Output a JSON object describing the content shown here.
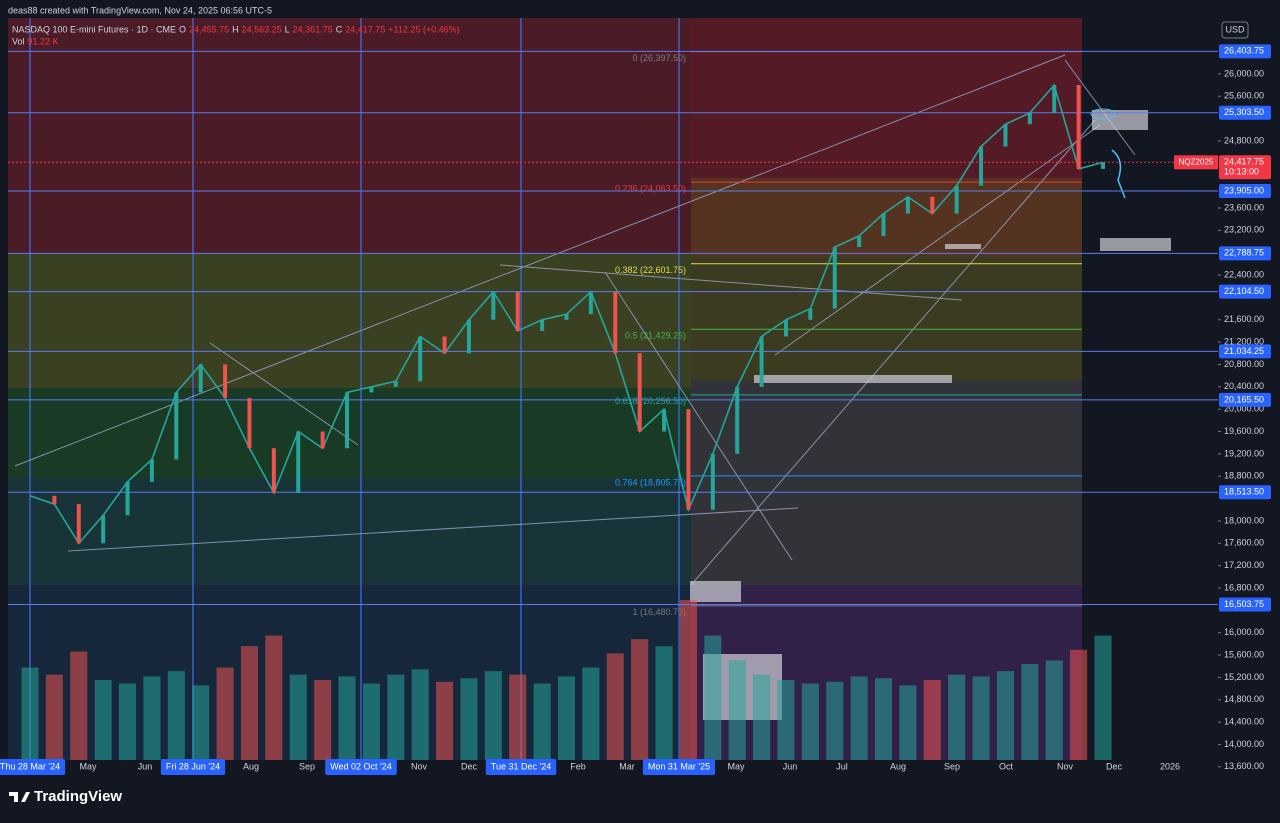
{
  "header": {
    "credit": "deas88 created with TradingView.com, Nov 24, 2025 06:56 UTC-5",
    "symbol": "NASDAQ 100 E-mini Futures · 1D · CME",
    "ohlc": [
      {
        "key": "O",
        "value": "24,455.75"
      },
      {
        "key": "H",
        "value": "24,563.25"
      },
      {
        "key": "L",
        "value": "24,361.75"
      },
      {
        "key": "C",
        "value": "24,417.75"
      }
    ],
    "change": "+112.25 (+0.46%)",
    "vol_label": "Vol",
    "vol_value": "91.22 K"
  },
  "currency": "USD",
  "price_axis": {
    "ylim": [
      13400,
      27000
    ],
    "ticks": [
      {
        "value": 26000,
        "label": "26,000.00"
      },
      {
        "value": 25600,
        "label": "25,600.00"
      },
      {
        "value": 24800,
        "label": "24,800.00"
      },
      {
        "value": 23600,
        "label": "23,600.00"
      },
      {
        "value": 23200,
        "label": "23,200.00"
      },
      {
        "value": 22400,
        "label": "22,400.00"
      },
      {
        "value": 21600,
        "label": "21,600.00"
      },
      {
        "value": 21200,
        "label": "21,200.00"
      },
      {
        "value": 20800,
        "label": "20,800.00"
      },
      {
        "value": 20400,
        "label": "20,400.00"
      },
      {
        "value": 20000,
        "label": "20,000.00"
      },
      {
        "value": 19600,
        "label": "19,600.00"
      },
      {
        "value": 19200,
        "label": "19,200.00"
      },
      {
        "value": 18800,
        "label": "18,800.00"
      },
      {
        "value": 18000,
        "label": "18,000.00"
      },
      {
        "value": 17600,
        "label": "17,600.00"
      },
      {
        "value": 17200,
        "label": "17,200.00"
      },
      {
        "value": 16800,
        "label": "16,800.00"
      },
      {
        "value": 16000,
        "label": "16,000.00"
      },
      {
        "value": 15600,
        "label": "15,600.00"
      },
      {
        "value": 15200,
        "label": "15,200.00"
      },
      {
        "value": 14800,
        "label": "14,800.00"
      },
      {
        "value": 14400,
        "label": "14,400.00"
      },
      {
        "value": 14000,
        "label": "14,000.00"
      },
      {
        "value": 13600,
        "label": "13,600.00"
      }
    ],
    "level_tags": [
      {
        "value": 26403.75,
        "label": "26,403.75"
      },
      {
        "value": 25303.5,
        "label": "25,303.50"
      },
      {
        "value": 23905,
        "label": "23,905.00"
      },
      {
        "value": 22788.75,
        "label": "22,788.75"
      },
      {
        "value": 22104.5,
        "label": "22,104.50"
      },
      {
        "value": 21034.25,
        "label": "21,034.25"
      },
      {
        "value": 20165.5,
        "label": "20,165.50"
      },
      {
        "value": 18513.5,
        "label": "18,513.50"
      },
      {
        "value": 16503.75,
        "label": "16,503.75"
      }
    ],
    "last_price": {
      "value": 24417.75,
      "symbol": "NQZ2025",
      "label": "24,417.75",
      "countdown": "10:13:00"
    }
  },
  "fib_levels": [
    {
      "value": 26397.5,
      "label": "0 (26,397.50)",
      "color": "#787b86"
    },
    {
      "value": 24063.5,
      "label": "0.236 (24,063.50)",
      "color": "#f23645"
    },
    {
      "value": 22601.75,
      "label": "0.382 (22,601.75)",
      "color": "#e8d94a"
    },
    {
      "value": 21429.25,
      "label": "0.5 (21,429.25)",
      "color": "#4caf50"
    },
    {
      "value": 20256.5,
      "label": "0.618 (20,256.50)",
      "color": "#26a69a"
    },
    {
      "value": 18805.75,
      "label": "0.764 (18,805.75)",
      "color": "#2196f3"
    },
    {
      "value": 16480.75,
      "label": "1 (16,480.75)",
      "color": "#787b86"
    }
  ],
  "time_axis": {
    "labels": [
      "Thu 28 Mar '24",
      "May",
      "Jun",
      "Fri 28 Jun '24",
      "Aug",
      "Sep",
      "Wed 02 Oct '24",
      "Nov",
      "Dec",
      "Tue 31 Dec '24",
      "Feb",
      "Mar",
      "Mon 31 Mar '25",
      "May",
      "Jun",
      "Jul",
      "Aug",
      "Sep",
      "Oct",
      "Nov",
      "Dec",
      "2026"
    ],
    "highlighted": [
      0,
      3,
      6,
      9,
      12
    ]
  },
  "price_path": [
    18450,
    18300,
    17600,
    18100,
    18700,
    19100,
    20300,
    20800,
    20200,
    19300,
    18500,
    19600,
    19300,
    20300,
    20400,
    20500,
    21300,
    21000,
    21600,
    22100,
    21400,
    21600,
    21700,
    22100,
    21000,
    19600,
    20000,
    18200,
    19200,
    20400,
    21300,
    21600,
    21800,
    22900,
    23100,
    23500,
    23800,
    23500,
    24000,
    24700,
    25100,
    25300,
    25800,
    24300,
    24417.75
  ],
  "volume": [
    520,
    480,
    610,
    450,
    430,
    470,
    500,
    420,
    520,
    640,
    700,
    480,
    450,
    470,
    430,
    480,
    510,
    440,
    460,
    500,
    480,
    430,
    470,
    520,
    600,
    680,
    640,
    900,
    700,
    560,
    480,
    450,
    430,
    440,
    470,
    460,
    420,
    450,
    480,
    470,
    500,
    540,
    560,
    620,
    700
  ],
  "footer": "TradingView"
}
